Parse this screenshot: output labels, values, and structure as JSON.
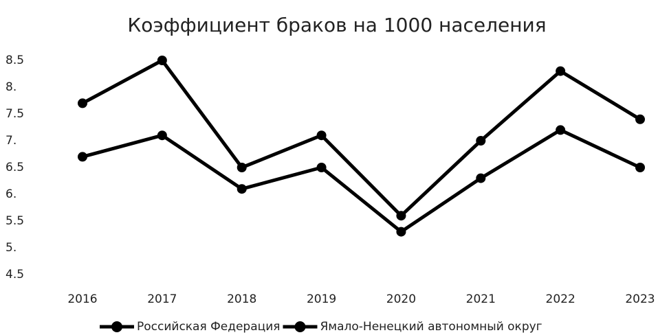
{
  "chart_data": {
    "type": "line",
    "title": "Коэффициент браков на 1000 населения",
    "categories": [
      "2016",
      "2017",
      "2018",
      "2019",
      "2020",
      "2021",
      "2022",
      "2023"
    ],
    "series": [
      {
        "name": "Российская Федерация",
        "color": "#000000",
        "values": [
          6.7,
          7.1,
          6.1,
          6.5,
          5.3,
          6.3,
          7.2,
          6.5
        ]
      },
      {
        "name": "Ямало-Ненецкий автономный округ",
        "color": "#000000",
        "values": [
          7.7,
          8.5,
          6.5,
          7.1,
          5.6,
          7.0,
          8.3,
          7.4
        ]
      }
    ],
    "ylim": [
      4.5,
      8.5
    ],
    "yticks": [
      4.5,
      {
        "value": 5,
        "label": "5."
      },
      5.5,
      {
        "value": 6,
        "label": "6."
      },
      6.5,
      {
        "value": 7,
        "label": "7."
      },
      7.5,
      {
        "value": 8,
        "label": "8."
      },
      8.5
    ],
    "grid": false,
    "legend": "bottom"
  }
}
